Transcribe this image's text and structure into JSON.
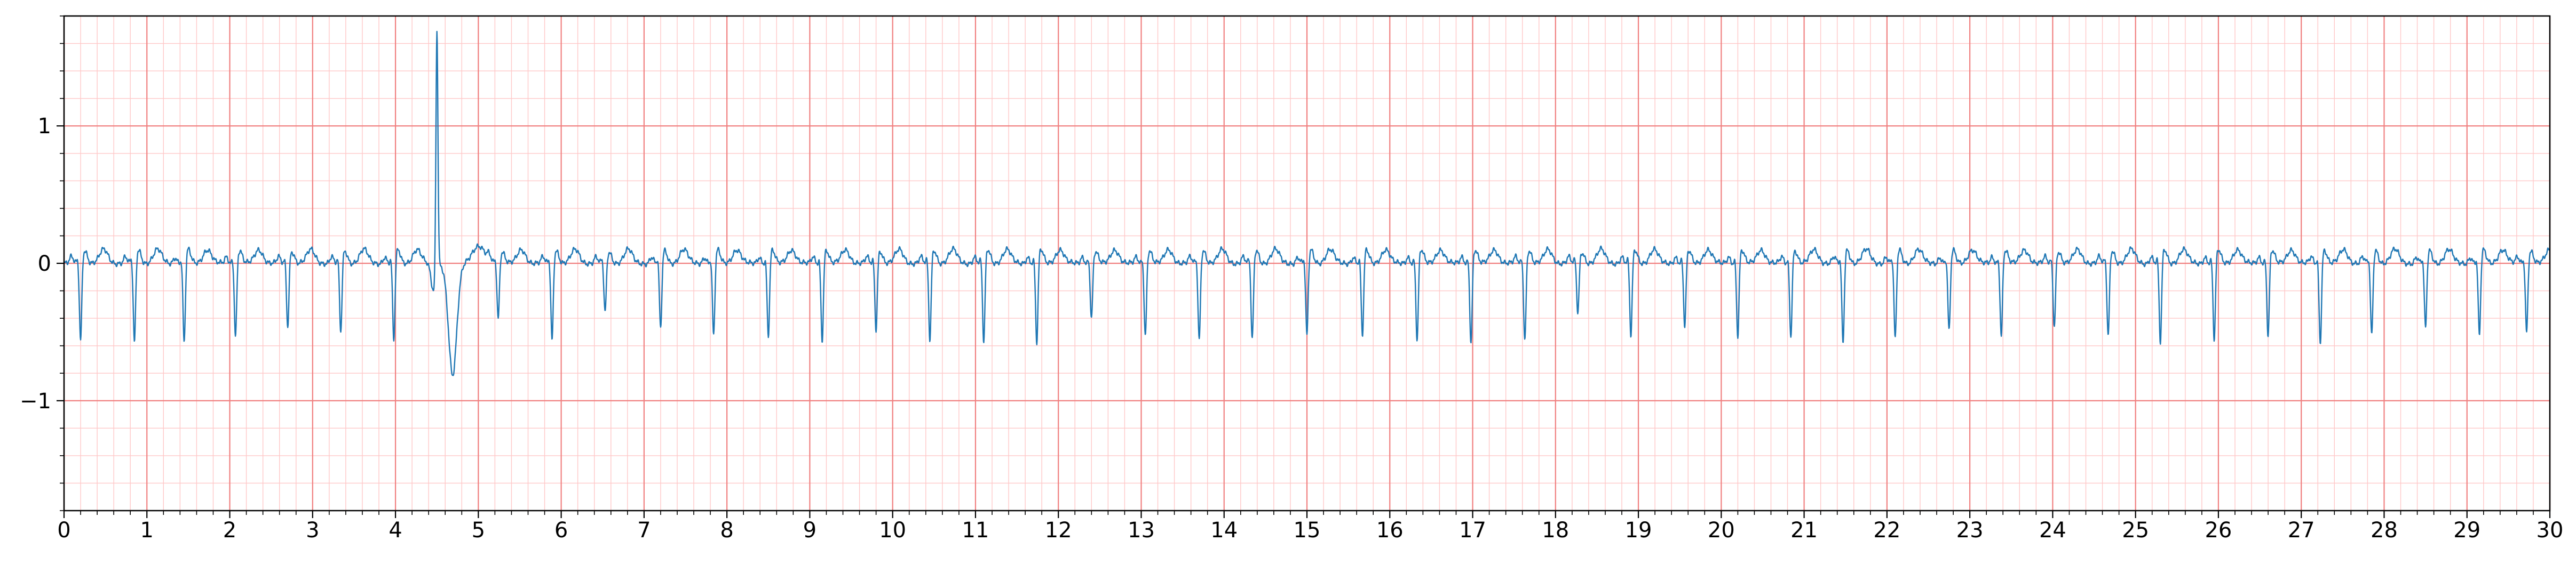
{
  "chart_data": {
    "type": "line",
    "title": "",
    "xlabel": "",
    "ylabel": "",
    "xlim": [
      0,
      30
    ],
    "ylim": [
      -1.8,
      1.8
    ],
    "x_ticks": [
      "0",
      "1",
      "2",
      "3",
      "4",
      "5",
      "6",
      "7",
      "8",
      "9",
      "10",
      "11",
      "12",
      "13",
      "14",
      "15",
      "16",
      "17",
      "18",
      "19",
      "20",
      "21",
      "22",
      "23",
      "24",
      "25",
      "26",
      "27",
      "28",
      "29",
      "30"
    ],
    "y_ticks": [
      {
        "value": 1,
        "label": "1"
      },
      {
        "value": 0,
        "label": "0"
      },
      {
        "value": -1,
        "label": "−1"
      }
    ],
    "grid": {
      "major": true,
      "major_step": [
        1,
        1
      ],
      "major_color": "#f08080",
      "minor": true,
      "minor_step": [
        0.2,
        0.2
      ],
      "minor_color": "#ffc8c8"
    },
    "series": [
      {
        "name": "",
        "color": "#1f77b4",
        "beat_times": [
          0.2,
          0.85,
          1.45,
          2.07,
          2.7,
          3.34,
          3.98,
          5.24,
          5.89,
          6.53,
          7.2,
          7.84,
          8.5,
          9.15,
          9.8,
          10.45,
          11.1,
          11.74,
          12.4,
          13.05,
          13.7,
          14.34,
          15.0,
          15.67,
          16.33,
          16.98,
          17.63,
          18.27,
          18.91,
          19.56,
          20.2,
          20.84,
          21.47,
          22.1,
          22.75,
          23.38,
          24.02,
          24.67,
          25.3,
          25.95,
          26.6,
          27.23,
          27.85,
          28.5,
          29.15,
          29.72
        ],
        "beat_depths": [
          -0.58,
          -0.6,
          -0.6,
          -0.55,
          -0.48,
          -0.52,
          -0.58,
          -0.42,
          -0.58,
          -0.38,
          -0.5,
          -0.55,
          -0.55,
          -0.58,
          -0.5,
          -0.58,
          -0.6,
          -0.6,
          -0.42,
          -0.55,
          -0.58,
          -0.58,
          -0.55,
          -0.55,
          -0.58,
          -0.6,
          -0.58,
          -0.38,
          -0.55,
          -0.48,
          -0.55,
          -0.55,
          -0.6,
          -0.58,
          -0.52,
          -0.55,
          -0.48,
          -0.55,
          -0.6,
          -0.58,
          -0.55,
          -0.6,
          -0.55,
          -0.5,
          -0.55,
          -0.52
        ],
        "ectopic_beat": {
          "time": 4.5,
          "peak": 1.78,
          "trough": -0.82
        }
      }
    ]
  }
}
